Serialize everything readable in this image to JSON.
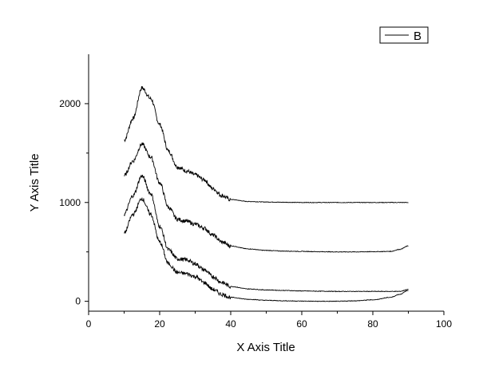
{
  "chart_data": {
    "type": "line",
    "title": "",
    "xlabel": "X Axis Title",
    "ylabel": "Y Axis Title",
    "xlim": [
      0,
      100
    ],
    "ylim": [
      -100,
      2500
    ],
    "x_ticks": [
      0,
      20,
      40,
      60,
      80,
      100
    ],
    "y_ticks": [
      0,
      1000,
      2000
    ],
    "grid": false,
    "legend": {
      "position": "top-right",
      "entries": [
        "B"
      ]
    },
    "line_color": "#000000",
    "x": [
      10,
      12.5,
      15,
      17.5,
      20,
      22.5,
      25,
      27.5,
      30,
      32.5,
      35,
      37.5,
      40,
      45,
      50,
      55,
      60,
      65,
      70,
      75,
      80,
      85,
      87.5,
      90
    ],
    "series": [
      {
        "values": [
          1630,
          1850,
          2160,
          2050,
          1790,
          1520,
          1360,
          1320,
          1280,
          1230,
          1140,
          1070,
          1030,
          1010,
          1005,
          1002,
          1000,
          1000,
          1000,
          1000,
          1000,
          1000,
          1000,
          1000
        ]
      },
      {
        "values": [
          1270,
          1420,
          1590,
          1460,
          1200,
          950,
          830,
          810,
          780,
          740,
          670,
          600,
          560,
          530,
          515,
          508,
          505,
          502,
          500,
          500,
          502,
          505,
          525,
          560
        ]
      },
      {
        "values": [
          880,
          1070,
          1270,
          1090,
          760,
          520,
          430,
          420,
          380,
          320,
          250,
          190,
          150,
          125,
          115,
          110,
          105,
          102,
          100,
          100,
          100,
          100,
          100,
          120
        ]
      },
      {
        "values": [
          690,
          880,
          1040,
          880,
          600,
          380,
          290,
          280,
          250,
          190,
          120,
          70,
          40,
          20,
          10,
          5,
          2,
          0,
          0,
          5,
          15,
          40,
          70,
          110
        ]
      }
    ]
  }
}
